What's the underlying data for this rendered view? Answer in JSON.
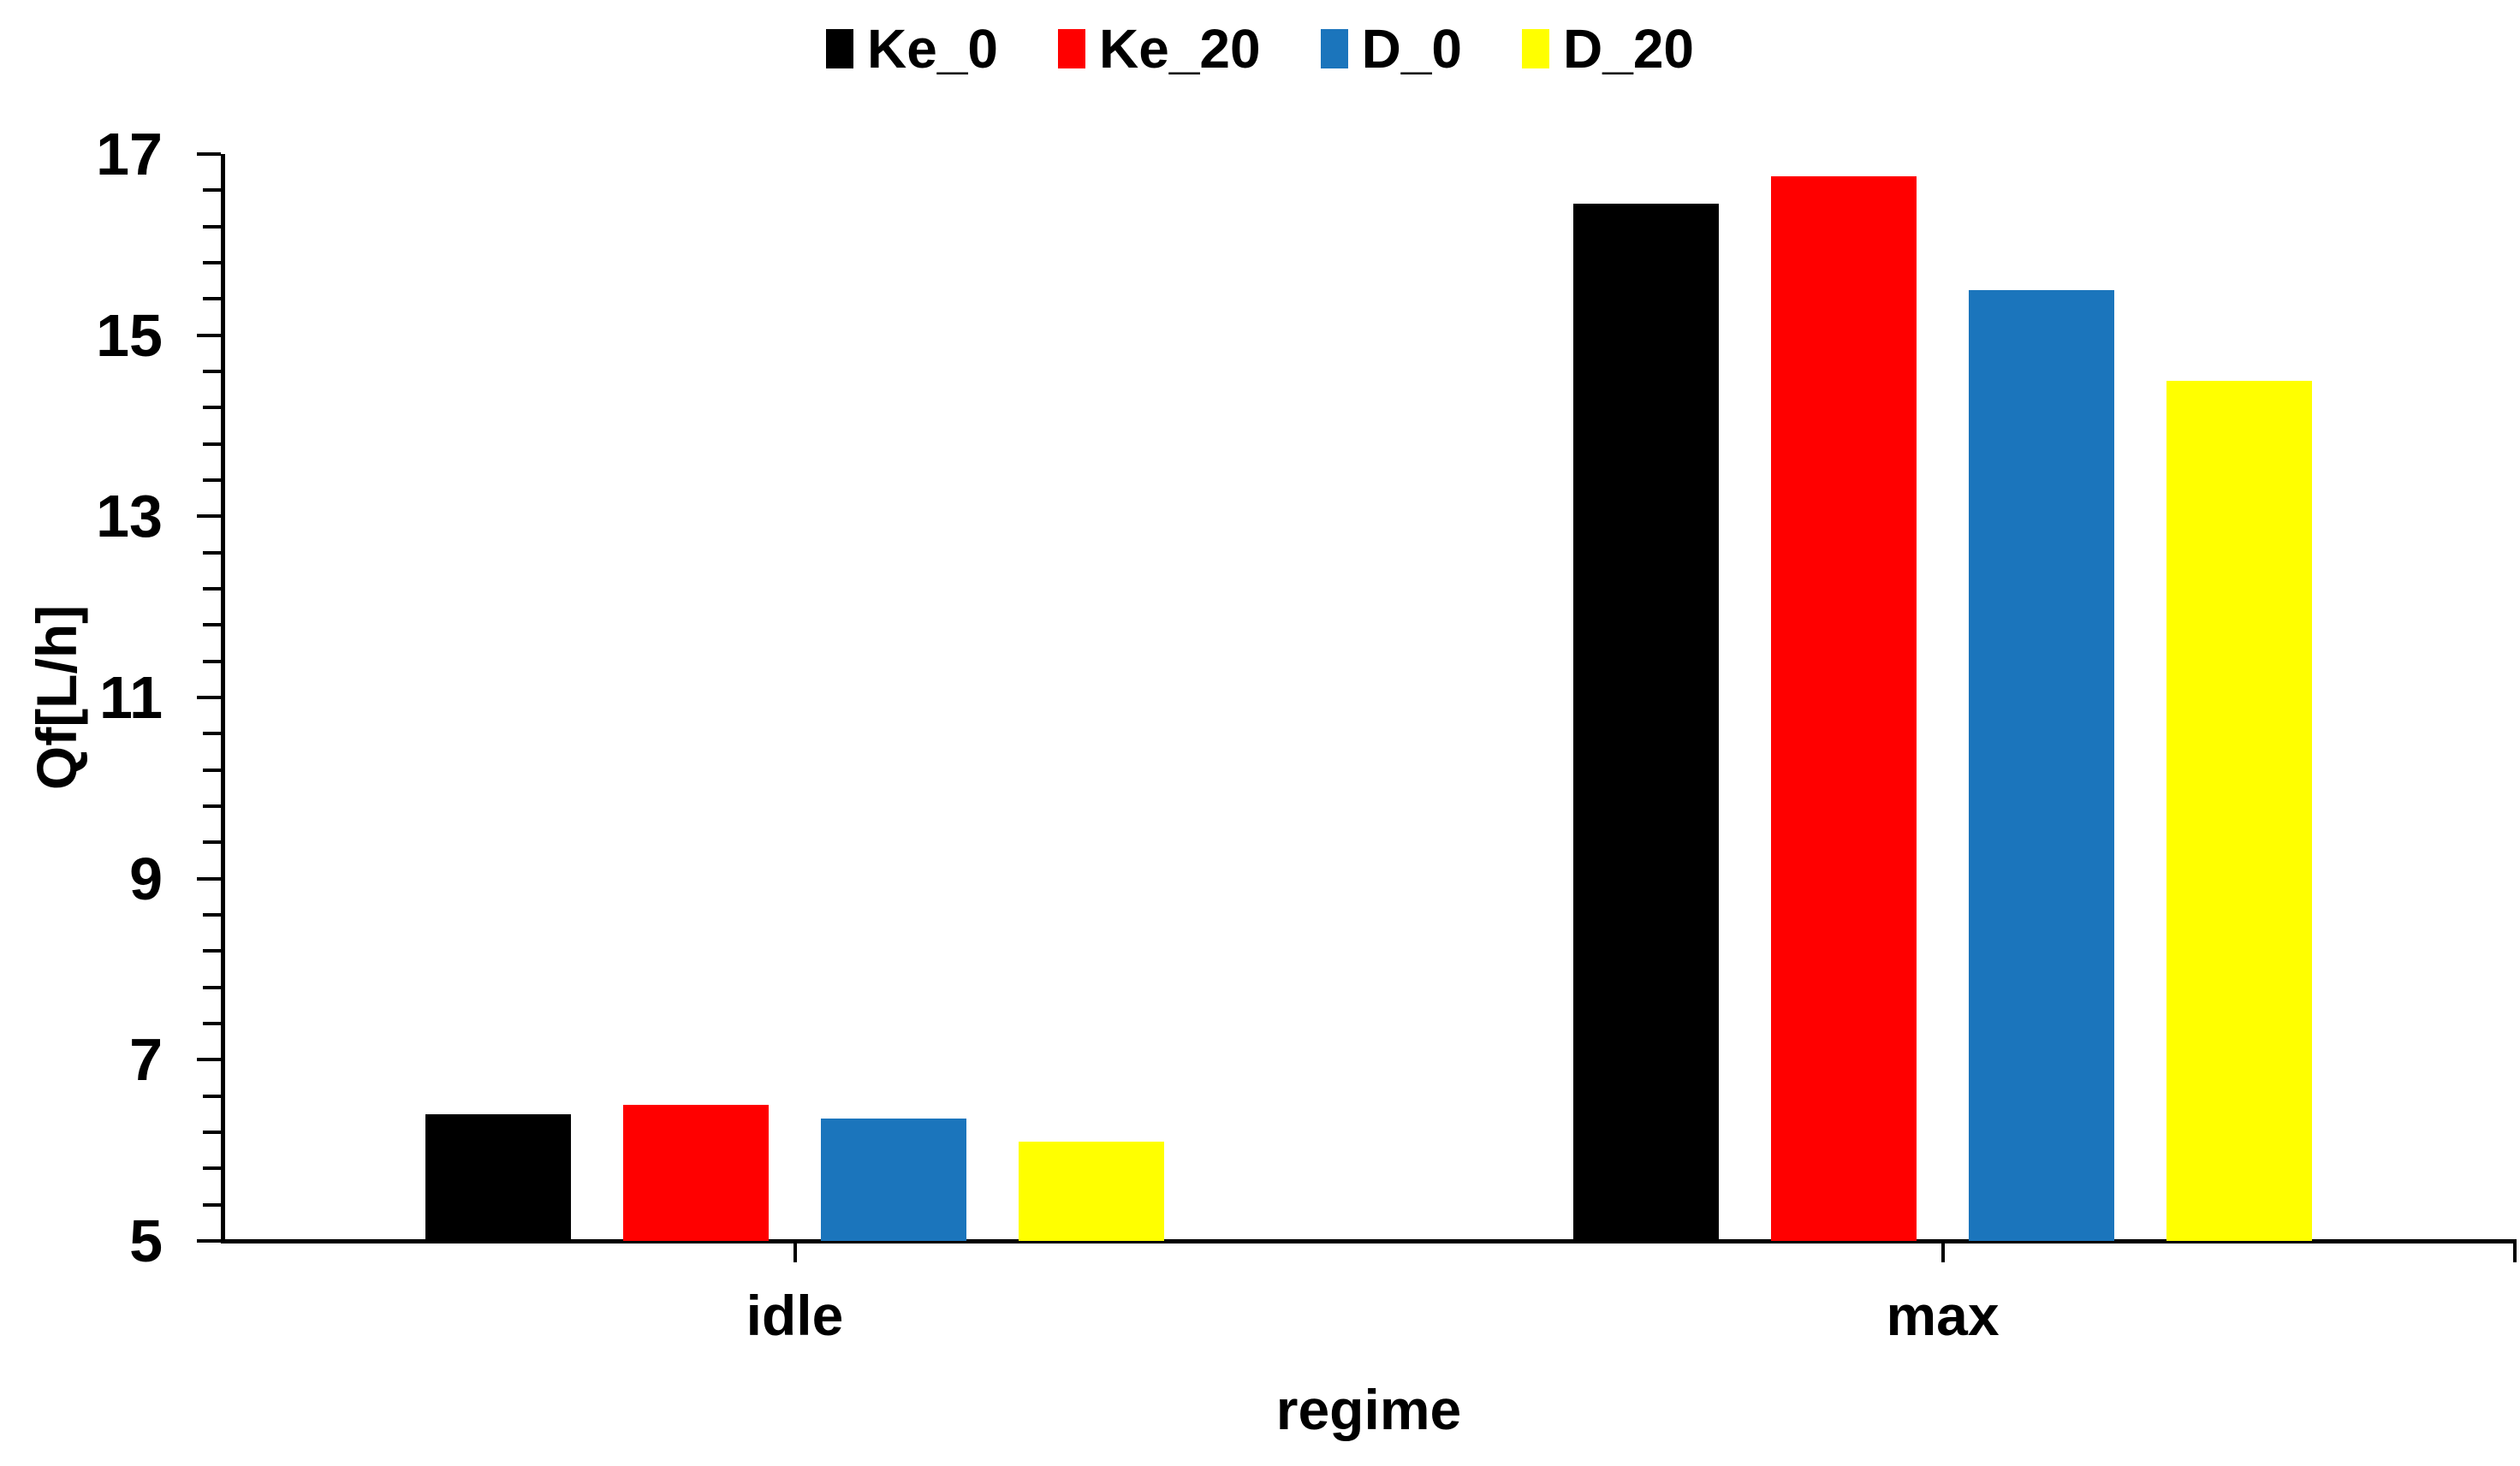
{
  "chart_data": {
    "type": "bar",
    "title": "",
    "xlabel": "regime",
    "ylabel": "Qf[L/h]",
    "categories": [
      "idle",
      "max"
    ],
    "series": [
      {
        "name": "Ke_0",
        "color": "#000000",
        "values": [
          6.4,
          16.45
        ]
      },
      {
        "name": "Ke_20",
        "color": "#FF0000",
        "values": [
          6.5,
          16.75
        ]
      },
      {
        "name": "D_0",
        "color": "#1B75BC",
        "values": [
          6.35,
          15.5
        ]
      },
      {
        "name": "D_20",
        "color": "#FFFF00",
        "values": [
          6.1,
          14.5
        ]
      }
    ],
    "ylim": [
      5,
      17
    ],
    "ytick_labels": [
      "5",
      "7",
      "9",
      "11",
      "13",
      "15",
      "17"
    ],
    "ytick_major_step": 2,
    "ytick_minor_step": 0.4,
    "bar_baseline": 5,
    "grid": false,
    "legend_position": "top"
  },
  "canvas": {
    "background": "#FFFFFF",
    "axis_color": "#000000"
  }
}
